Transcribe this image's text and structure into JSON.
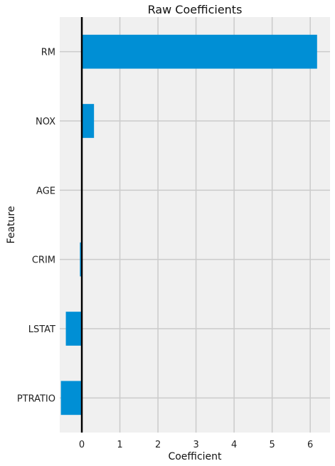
{
  "chart_data": {
    "type": "bar",
    "orientation": "horizontal",
    "title": "Raw Coefficients",
    "xlabel": "Coefficient",
    "ylabel": "Feature",
    "categories": [
      "RM",
      "NOX",
      "AGE",
      "CRIM",
      "LSTAT",
      "PTRATIO"
    ],
    "values": [
      6.18,
      0.32,
      0.0,
      -0.05,
      -0.42,
      -0.55
    ],
    "xlim": [
      -0.58,
      6.52
    ],
    "xticks": [
      0,
      1,
      2,
      3,
      4,
      5,
      6
    ],
    "grid": true,
    "zero_line": true,
    "colors": {
      "bar": "#008fd5",
      "plot_background": "#f0f0f0",
      "grid": "#cbcbcb",
      "zero_line": "#000000"
    }
  }
}
